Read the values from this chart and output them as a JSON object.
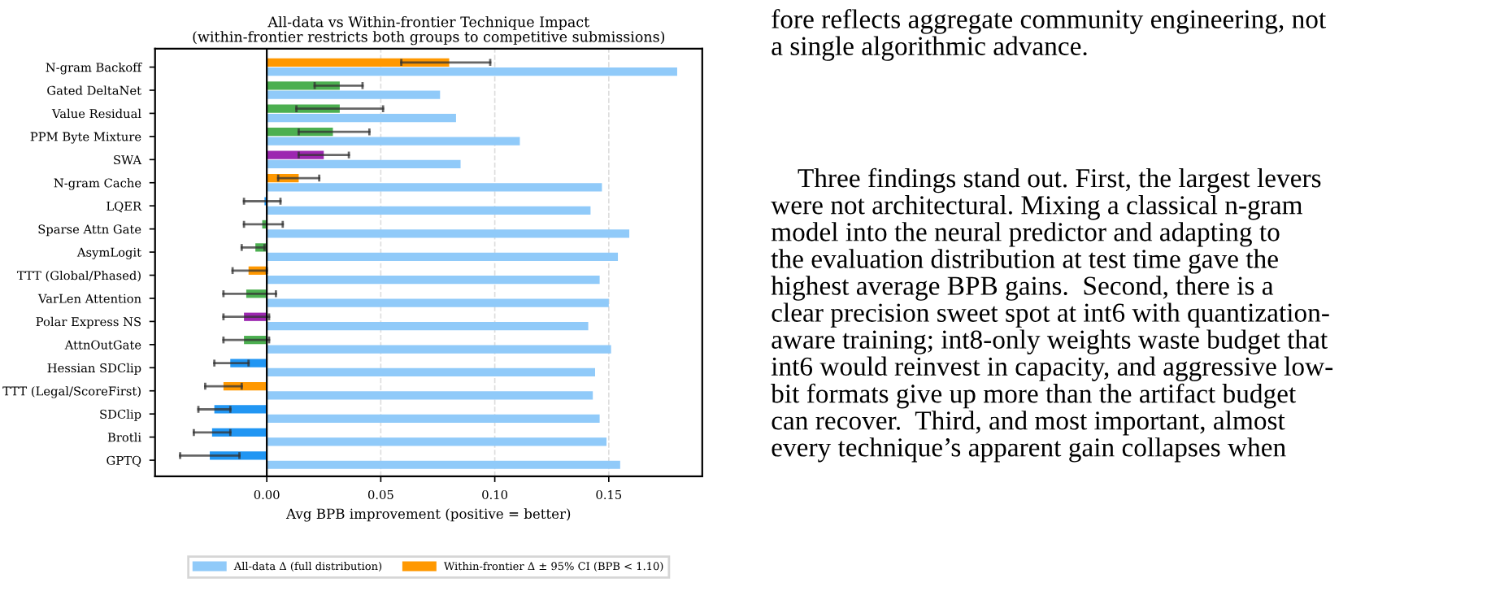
{
  "chart_data": {
    "type": "bar",
    "orientation": "horizontal",
    "title": "All-data vs Within-frontier Technique Impact\n(within-frontier restricts both groups to competitive submissions)",
    "xlabel": "Avg BPB improvement (positive = better)",
    "categories": [
      "N-gram Backoff",
      "Gated DeltaNet",
      "Value Residual",
      "PPM Byte Mixture",
      "SWA",
      "N-gram Cache",
      "LQER",
      "Sparse Attn Gate",
      "AsymLogit",
      "TTT (Global/Phased)",
      "VarLen Attention",
      "Polar Express NS",
      "AttnOutGate",
      "Hessian SDClip",
      "TTT (Legal/ScoreFirst)",
      "SDClip",
      "Brotli",
      "GPTQ"
    ],
    "series": [
      {
        "name": "All-data Δ (full distribution)",
        "color": "#90caf9",
        "values": [
          0.18,
          0.076,
          0.083,
          0.111,
          0.085,
          0.147,
          0.142,
          0.159,
          0.154,
          0.146,
          0.15,
          0.141,
          0.151,
          0.144,
          0.143,
          0.146,
          0.149,
          0.155
        ]
      },
      {
        "name": "Within-frontier Δ ± 95% CI (BPB < 1.10)",
        "color": "#ff9800",
        "colors": [
          "#ff9800",
          "#4caf50",
          "#4caf50",
          "#4caf50",
          "#9c27b0",
          "#ff9800",
          "#2196f3",
          "#4caf50",
          "#4caf50",
          "#ff9800",
          "#4caf50",
          "#9c27b0",
          "#4caf50",
          "#2196f3",
          "#ff9800",
          "#2196f3",
          "#2196f3",
          "#2196f3"
        ],
        "values": [
          0.08,
          0.032,
          0.032,
          0.029,
          0.025,
          0.014,
          -0.001,
          -0.002,
          -0.005,
          -0.008,
          -0.009,
          -0.01,
          -0.01,
          -0.016,
          -0.019,
          -0.023,
          -0.024,
          -0.025
        ],
        "errors": [
          [
            0.059,
            0.098
          ],
          [
            0.021,
            0.042
          ],
          [
            0.013,
            0.051
          ],
          [
            0.014,
            0.045
          ],
          [
            0.014,
            0.036
          ],
          [
            0.005,
            0.023
          ],
          [
            -0.01,
            0.006
          ],
          [
            -0.01,
            0.007
          ],
          [
            -0.011,
            -0.001
          ],
          [
            -0.015,
            0.0
          ],
          [
            -0.019,
            0.004
          ],
          [
            -0.019,
            0.001
          ],
          [
            -0.019,
            0.001
          ],
          [
            -0.023,
            -0.008
          ],
          [
            -0.027,
            -0.011
          ],
          [
            -0.03,
            -0.016
          ],
          [
            -0.032,
            -0.016
          ],
          [
            -0.038,
            -0.012
          ]
        ]
      }
    ],
    "xlim": [
      -0.049,
      0.191
    ],
    "xticks": [
      {
        "value": 0,
        "label": "0.00"
      },
      {
        "value": 0.05,
        "label": "0.05"
      },
      {
        "value": 0.1,
        "label": "0.10"
      },
      {
        "value": 0.15,
        "label": "0.15"
      }
    ],
    "ref_lines": [
      {
        "axis": "x",
        "value": 0,
        "color": "#000000"
      }
    ],
    "grid": "x",
    "legend": "bottom",
    "annotations": [
      "fore reflects aggregate community engineering, not\na single algorithmic advance.",
      "    Three findings stand out. First, the largest levers\nwere not architectural. Mixing a classical n-gram\nmodel into the neural predictor and adapting to\nthe evaluation distribution at test time gave the\nhighest average BPB gains.  Second, there is a\nclear precision sweet spot at int6 with quantization-\naware training; int8-only weights waste budget that\nint6 would reinvest in capacity, and aggressive low-\nbit formats give up more than the artifact budget\ncan recover.  Third, and most important, almost\nevery technique’s apparent gain collapses when"
    ]
  }
}
